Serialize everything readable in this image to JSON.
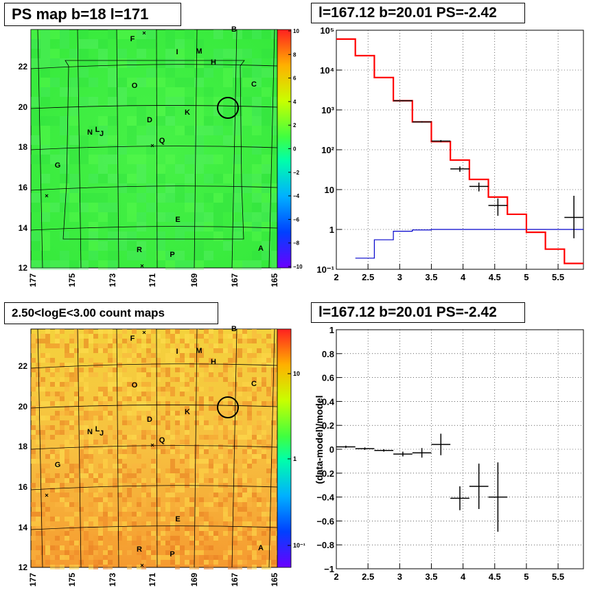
{
  "titles": {
    "ps_map": "PS map b=18 l=171",
    "spectrum": "l=167.12 b=20.01 PS=-2.42",
    "count_map": "2.50<logE<3.00 count maps",
    "residual": "l=167.12 b=20.01 PS=-2.42"
  },
  "maps": {
    "x_ticks": [
      "177",
      "175",
      "173",
      "171",
      "169",
      "167",
      "165"
    ],
    "y_ticks": [
      "12",
      "14",
      "16",
      "18",
      "20",
      "22"
    ],
    "source_labels": [
      "F",
      "B",
      "I",
      "M",
      "H",
      "O",
      "C",
      "K",
      "D",
      "N",
      "L",
      "J",
      "Q",
      "G",
      "E",
      "R",
      "P",
      "A"
    ],
    "ps_colorbar_ticks": [
      "10",
      "8",
      "6",
      "4",
      "2",
      "0",
      "−2",
      "−4",
      "−6",
      "−8",
      "−10"
    ],
    "count_colorbar_ticks": [
      "10",
      "1",
      "10⁻¹"
    ],
    "ps_bg_color": "#3cf53c",
    "count_bg_color": "#f5c83c"
  },
  "chart_data": [
    {
      "type": "line",
      "name": "spectrum",
      "x_ticks": [
        "2",
        "2.5",
        "3",
        "3.5",
        "4",
        "4.5",
        "5",
        "5.5"
      ],
      "y_ticks": [
        "10⁻¹",
        "1",
        "10",
        "10²",
        "10³",
        "10⁴",
        "10⁵"
      ],
      "xlim": [
        2,
        5.9
      ],
      "ylim": [
        0.1,
        100000
      ],
      "log_y": true,
      "grid": true,
      "model_step": {
        "edges": [
          2,
          2.3,
          2.6,
          2.9,
          3.2,
          3.5,
          3.8,
          4.1,
          4.4,
          4.7,
          5.0,
          5.3,
          5.6,
          5.9
        ],
        "values": [
          60000,
          23000,
          6500,
          1700,
          500,
          160,
          55,
          18,
          6.5,
          2.4,
          0.85,
          0.32,
          0.14
        ],
        "color": "#ff0000"
      },
      "background_step": {
        "edges": [
          2.3,
          2.6,
          2.9,
          3.2,
          3.5,
          3.8,
          4.1,
          4.4,
          4.7,
          5.0,
          5.3,
          5.6,
          5.9
        ],
        "values": [
          0.19,
          0.55,
          0.9,
          0.97,
          1.0,
          1.0,
          1.0,
          1.0,
          1.0,
          1.0,
          1.0,
          1.0
        ],
        "color": "#0000cc"
      },
      "data_points": [
        {
          "x": 3.05,
          "y": 1700,
          "xerr": 0.15,
          "ylo": 1650,
          "yhi": 1750
        },
        {
          "x": 3.35,
          "y": 500,
          "xerr": 0.15,
          "ylo": 480,
          "yhi": 520
        },
        {
          "x": 3.65,
          "y": 165,
          "xerr": 0.15,
          "ylo": 155,
          "yhi": 175
        },
        {
          "x": 3.95,
          "y": 33,
          "xerr": 0.15,
          "ylo": 28,
          "yhi": 38
        },
        {
          "x": 4.25,
          "y": 12,
          "xerr": 0.15,
          "ylo": 9,
          "yhi": 15
        },
        {
          "x": 4.55,
          "y": 4,
          "xerr": 0.15,
          "ylo": 2.2,
          "yhi": 6
        },
        {
          "x": 5.75,
          "y": 2,
          "xerr": 0.15,
          "ylo": 0.6,
          "yhi": 7
        }
      ]
    },
    {
      "type": "scatter",
      "name": "residual",
      "ylabel": "(data-model)/model",
      "x_ticks": [
        "2",
        "2.5",
        "3",
        "3.5",
        "4",
        "4.5",
        "5",
        "5.5"
      ],
      "y_ticks": [
        "−1",
        "−0.8",
        "−0.6",
        "−0.4",
        "−0.2",
        "0",
        "0.2",
        "0.4",
        "0.6",
        "0.8",
        "1"
      ],
      "xlim": [
        2,
        5.9
      ],
      "ylim": [
        -1,
        1
      ],
      "grid": true,
      "points": [
        {
          "x": 2.15,
          "y": 0.02,
          "xerr": 0.15,
          "yerr": 0.01
        },
        {
          "x": 2.45,
          "y": 0.005,
          "xerr": 0.15,
          "yerr": 0.01
        },
        {
          "x": 2.75,
          "y": -0.01,
          "xerr": 0.15,
          "yerr": 0.01
        },
        {
          "x": 3.05,
          "y": -0.04,
          "xerr": 0.15,
          "yerr": 0.02
        },
        {
          "x": 3.35,
          "y": -0.03,
          "xerr": 0.15,
          "yerr": 0.04
        },
        {
          "x": 3.65,
          "y": 0.04,
          "xerr": 0.15,
          "yerr": 0.09
        },
        {
          "x": 3.95,
          "y": -0.41,
          "xerr": 0.15,
          "yerr": 0.1
        },
        {
          "x": 4.25,
          "y": -0.31,
          "xerr": 0.15,
          "yerr": 0.19
        },
        {
          "x": 4.55,
          "y": -0.4,
          "xerr": 0.15,
          "yerr": 0.29
        }
      ]
    }
  ]
}
